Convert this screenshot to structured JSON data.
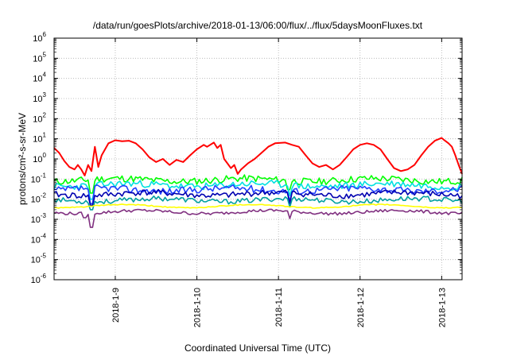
{
  "chart_data": {
    "type": "line",
    "title": "/data/run/goesPlots/archive/2018-01-13/06:00/flux/../flux/5daysMoonFluxes.txt",
    "xlabel": "Coordinated Universal Time (UTC)",
    "ylabel": "protons/cm²-s-sr-MeV",
    "y_scale": "log",
    "ylim": [
      1e-06,
      1000000.0
    ],
    "xlim": [
      "2018-01-08T06:00",
      "2018-01-13T06:00"
    ],
    "x_ticks": [
      "2018-1-9",
      "2018-1-10",
      "2018-1-11",
      "2018-1-12",
      "2018-1-13"
    ],
    "y_ticks": [
      {
        "base": "10",
        "exp": "-6"
      },
      {
        "base": "10",
        "exp": "-5"
      },
      {
        "base": "10",
        "exp": "-4"
      },
      {
        "base": "10",
        "exp": "-3"
      },
      {
        "base": "10",
        "exp": "-2"
      },
      {
        "base": "10",
        "exp": "-1"
      },
      {
        "base": "10",
        "exp": "0"
      },
      {
        "base": "10",
        "exp": "1"
      },
      {
        "base": "10",
        "exp": "2"
      },
      {
        "base": "10",
        "exp": "3"
      },
      {
        "base": "10",
        "exp": "4"
      },
      {
        "base": "10",
        "exp": "5"
      },
      {
        "base": "10",
        "exp": "6"
      }
    ],
    "grid": true,
    "series": [
      {
        "color": "#ff0000",
        "points": [
          [
            "2018-01-08T06:00",
            3.5
          ],
          [
            "2018-01-08T07:30",
            2.0
          ],
          [
            "2018-01-08T09:00",
            0.8
          ],
          [
            "2018-01-08T10:30",
            0.4
          ],
          [
            "2018-01-08T12:00",
            0.3
          ],
          [
            "2018-01-08T13:00",
            0.5
          ],
          [
            "2018-01-08T14:00",
            0.3
          ],
          [
            "2018-01-08T15:00",
            0.15
          ],
          [
            "2018-01-08T16:00",
            0.5
          ],
          [
            "2018-01-08T17:00",
            0.25
          ],
          [
            "2018-01-08T18:00",
            4.0
          ],
          [
            "2018-01-08T19:00",
            0.4
          ],
          [
            "2018-01-08T20:00",
            1.5
          ],
          [
            "2018-01-08T21:00",
            3.0
          ],
          [
            "2018-01-08T22:00",
            6.0
          ],
          [
            "2018-01-09T00:00",
            8.5
          ],
          [
            "2018-01-09T02:00",
            7.5
          ],
          [
            "2018-01-09T04:00",
            8.0
          ],
          [
            "2018-01-09T06:00",
            6.0
          ],
          [
            "2018-01-09T08:00",
            3.0
          ],
          [
            "2018-01-09T10:00",
            1.2
          ],
          [
            "2018-01-09T12:00",
            0.7
          ],
          [
            "2018-01-09T14:00",
            1.0
          ],
          [
            "2018-01-09T16:00",
            0.5
          ],
          [
            "2018-01-09T18:00",
            0.9
          ],
          [
            "2018-01-09T20:00",
            0.7
          ],
          [
            "2018-01-09T22:00",
            1.5
          ],
          [
            "2018-01-10T00:00",
            3.0
          ],
          [
            "2018-01-10T02:00",
            5.0
          ],
          [
            "2018-01-10T03:00",
            4.0
          ],
          [
            "2018-01-10T05:00",
            6.5
          ],
          [
            "2018-01-10T06:00",
            3.5
          ],
          [
            "2018-01-10T07:00",
            5.0
          ],
          [
            "2018-01-10T08:00",
            1.0
          ],
          [
            "2018-01-10T09:00",
            0.6
          ],
          [
            "2018-01-10T10:00",
            0.35
          ],
          [
            "2018-01-10T11:00",
            0.5
          ],
          [
            "2018-01-10T12:00",
            0.18
          ],
          [
            "2018-01-10T13:00",
            0.3
          ],
          [
            "2018-01-10T15:00",
            0.6
          ],
          [
            "2018-01-10T17:00",
            1.0
          ],
          [
            "2018-01-10T19:00",
            2.0
          ],
          [
            "2018-01-10T21:00",
            4.0
          ],
          [
            "2018-01-10T23:00",
            6.0
          ],
          [
            "2018-01-11T02:00",
            6.5
          ],
          [
            "2018-01-11T04:00",
            5.0
          ],
          [
            "2018-01-11T06:00",
            4.0
          ],
          [
            "2018-01-11T08:00",
            1.5
          ],
          [
            "2018-01-11T10:00",
            0.6
          ],
          [
            "2018-01-11T12:00",
            0.4
          ],
          [
            "2018-01-11T14:00",
            0.5
          ],
          [
            "2018-01-11T16:00",
            0.3
          ],
          [
            "2018-01-11T18:00",
            0.5
          ],
          [
            "2018-01-11T20:00",
            1.2
          ],
          [
            "2018-01-11T22:00",
            3.0
          ],
          [
            "2018-01-12T00:00",
            5.0
          ],
          [
            "2018-01-12T02:00",
            6.0
          ],
          [
            "2018-01-12T04:00",
            5.0
          ],
          [
            "2018-01-12T06:00",
            3.0
          ],
          [
            "2018-01-12T08:00",
            1.0
          ],
          [
            "2018-01-12T10:00",
            0.35
          ],
          [
            "2018-01-12T12:00",
            0.25
          ],
          [
            "2018-01-12T14:00",
            0.3
          ],
          [
            "2018-01-12T16:00",
            0.5
          ],
          [
            "2018-01-12T18:00",
            1.5
          ],
          [
            "2018-01-12T20:00",
            4.0
          ],
          [
            "2018-01-12T22:00",
            8.0
          ],
          [
            "2018-01-13T00:00",
            11.0
          ],
          [
            "2018-01-13T01:00",
            8.0
          ],
          [
            "2018-01-13T02:00",
            6.0
          ],
          [
            "2018-01-13T03:00",
            4.0
          ],
          [
            "2018-01-13T04:00",
            1.5
          ],
          [
            "2018-01-13T05:00",
            0.5
          ],
          [
            "2018-01-13T06:00",
            0.18
          ]
        ]
      },
      {
        "color": "#00ff00",
        "base": 0.09,
        "amp": 0.35,
        "seed": 11,
        "dips": [
          [
            "2018-01-08T16:30",
            0.03
          ],
          [
            "2018-01-08T17:00",
            0.02
          ],
          [
            "2018-01-11T03:00",
            0.03
          ]
        ]
      },
      {
        "color": "#00e0e0",
        "base": 0.05,
        "amp": 0.35,
        "seed": 23,
        "dips": [
          [
            "2018-01-08T17:00",
            0.01
          ],
          [
            "2018-01-11T03:30",
            0.015
          ]
        ]
      },
      {
        "color": "#2040ff",
        "base": 0.03,
        "amp": 0.35,
        "seed": 37,
        "dips": [
          [
            "2018-01-08T17:00",
            0.006
          ],
          [
            "2018-01-11T03:30",
            0.008
          ]
        ]
      },
      {
        "color": "#0000b0",
        "base": 0.018,
        "amp": 0.3,
        "seed": 41,
        "dips": [
          [
            "2018-01-08T17:00",
            0.005
          ],
          [
            "2018-01-11T03:30",
            0.006
          ]
        ]
      },
      {
        "color": "#00a0a0",
        "base": 0.009,
        "amp": 0.25,
        "seed": 53,
        "dips": [
          [
            "2018-01-08T17:00",
            0.003
          ],
          [
            "2018-01-11T03:30",
            0.004
          ]
        ]
      },
      {
        "color": "#ffff00",
        "base": 0.0045,
        "amp": 0.05,
        "seed": 61,
        "dips": []
      },
      {
        "color": "#803080",
        "base": 0.0023,
        "amp": 0.15,
        "seed": 79,
        "dips": [
          [
            "2018-01-08T15:00",
            0.0012
          ],
          [
            "2018-01-08T17:00",
            0.0004
          ],
          [
            "2018-01-11T03:30",
            0.0011
          ]
        ]
      }
    ]
  }
}
